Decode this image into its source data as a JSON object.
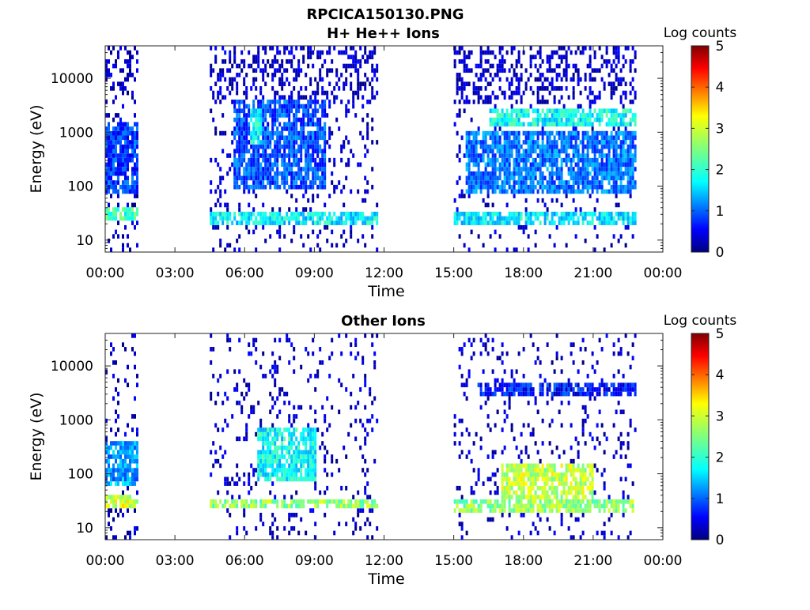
{
  "figure": {
    "file_title": "RPCICA150130.PNG"
  },
  "chart_data": [
    {
      "type": "heatmap",
      "title": "H+ He++ Ions",
      "xlabel": "Time",
      "ylabel": "Energy (eV)",
      "x_ticks": [
        "00:00",
        "03:00",
        "06:00",
        "09:00",
        "12:00",
        "15:00",
        "18:00",
        "21:00",
        "00:00"
      ],
      "x_range_hours": [
        0,
        24
      ],
      "y_scale": "log",
      "y_ticks": [
        10,
        100,
        1000,
        10000
      ],
      "y_range": [
        6,
        40000
      ],
      "colorbar": {
        "label": "Log counts",
        "ticks": [
          0,
          1,
          2,
          3,
          4,
          5
        ],
        "range": [
          0,
          5
        ],
        "colormap": "jet"
      },
      "data_gaps_hours": [
        [
          1.4,
          4.5
        ],
        [
          11.7,
          15.0
        ],
        [
          22.8,
          24
        ]
      ],
      "coverage_hours": [
        [
          0,
          1.4
        ],
        [
          4.5,
          11.7
        ],
        [
          15.0,
          22.8
        ]
      ],
      "bands": [
        {
          "t": [
            0,
            1.4
          ],
          "e": [
            20,
            40
          ],
          "v": 2.2
        },
        {
          "t": [
            0,
            1.4
          ],
          "e": [
            60,
            1500
          ],
          "v": 0.9
        },
        {
          "t": [
            4.5,
            11.7
          ],
          "e": [
            16,
            30
          ],
          "v": 1.8
        },
        {
          "t": [
            5.5,
            9.5
          ],
          "e": [
            80,
            3500
          ],
          "v": 1.0
        },
        {
          "t": [
            6.2,
            6.7
          ],
          "e": [
            500,
            2500
          ],
          "v": 1.9
        },
        {
          "t": [
            15.0,
            22.8
          ],
          "e": [
            16,
            30
          ],
          "v": 1.8
        },
        {
          "t": [
            16.5,
            22.8
          ],
          "e": [
            1200,
            2500
          ],
          "v": 1.9
        },
        {
          "t": [
            15.5,
            22.8
          ],
          "e": [
            60,
            900
          ],
          "v": 1.2
        }
      ]
    },
    {
      "type": "heatmap",
      "title": "Other Ions",
      "xlabel": "Time",
      "ylabel": "Energy (eV)",
      "x_ticks": [
        "00:00",
        "03:00",
        "06:00",
        "09:00",
        "12:00",
        "15:00",
        "18:00",
        "21:00",
        "00:00"
      ],
      "x_range_hours": [
        0,
        24
      ],
      "y_scale": "log",
      "y_ticks": [
        10,
        100,
        1000,
        10000
      ],
      "y_range": [
        6,
        40000
      ],
      "colorbar": {
        "label": "Log counts",
        "ticks": [
          0,
          1,
          2,
          3,
          4,
          5
        ],
        "range": [
          0,
          5
        ],
        "colormap": "jet"
      },
      "data_gaps_hours": [
        [
          1.4,
          4.5
        ],
        [
          11.7,
          15.0
        ],
        [
          22.8,
          24
        ]
      ],
      "coverage_hours": [
        [
          0,
          1.4
        ],
        [
          4.5,
          11.7
        ],
        [
          15.0,
          22.8
        ]
      ],
      "bands": [
        {
          "t": [
            0,
            1.4
          ],
          "e": [
            22,
            40
          ],
          "v": 2.9
        },
        {
          "t": [
            0,
            1.4
          ],
          "e": [
            50,
            400
          ],
          "v": 1.4
        },
        {
          "t": [
            4.5,
            11.7
          ],
          "e": [
            20,
            32
          ],
          "v": 2.6
        },
        {
          "t": [
            6.5,
            9.0
          ],
          "e": [
            60,
            600
          ],
          "v": 1.9
        },
        {
          "t": [
            15.0,
            22.8
          ],
          "e": [
            18,
            32
          ],
          "v": 2.6
        },
        {
          "t": [
            17.0,
            21.0
          ],
          "e": [
            30,
            150
          ],
          "v": 2.8
        },
        {
          "t": [
            16.0,
            22.8
          ],
          "e": [
            2500,
            4500
          ],
          "v": 0.7
        }
      ]
    }
  ]
}
